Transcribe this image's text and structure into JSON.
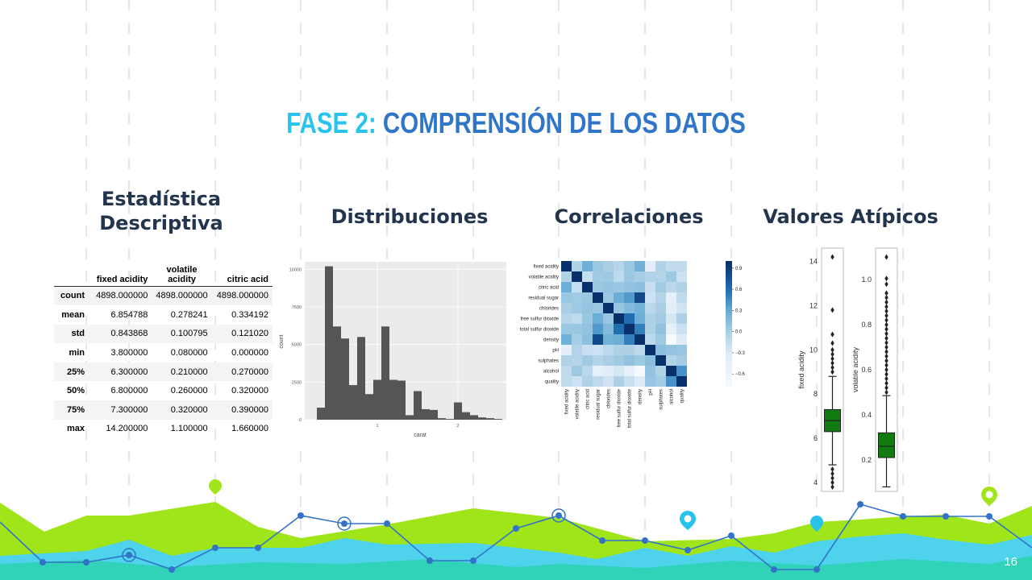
{
  "title": {
    "part1": "FASE 2:",
    "part2": "COMPRENSIÓN DE LOS DATOS"
  },
  "sections": {
    "stats": "Estadística Descriptiva",
    "dist": "Distribuciones",
    "corr": "Correlaciones",
    "outliers": "Valores Atípicos"
  },
  "stats_table": {
    "columns": [
      "fixed acidity",
      "volatile acidity",
      "citric acid"
    ],
    "rows": [
      {
        "label": "count",
        "values": [
          "4898.000000",
          "4898.000000",
          "4898.000000"
        ]
      },
      {
        "label": "mean",
        "values": [
          "6.854788",
          "0.278241",
          "0.334192"
        ]
      },
      {
        "label": "std",
        "values": [
          "0.843868",
          "0.100795",
          "0.121020"
        ]
      },
      {
        "label": "min",
        "values": [
          "3.800000",
          "0.080000",
          "0.000000"
        ]
      },
      {
        "label": "25%",
        "values": [
          "6.300000",
          "0.210000",
          "0.270000"
        ]
      },
      {
        "label": "50%",
        "values": [
          "6.800000",
          "0.260000",
          "0.320000"
        ]
      },
      {
        "label": "75%",
        "values": [
          "7.300000",
          "0.320000",
          "0.390000"
        ]
      },
      {
        "label": "max",
        "values": [
          "14.200000",
          "1.100000",
          "1.660000"
        ]
      }
    ]
  },
  "page_number": "16",
  "chart_data": [
    {
      "type": "bar",
      "title": "",
      "xlabel": "carat",
      "ylabel": "count",
      "x_ticks": [
        "1",
        "2"
      ],
      "y_ticks": [
        "0",
        "2500",
        "5000",
        "7500",
        "10000"
      ],
      "ylim": [
        0,
        10500
      ],
      "xlim": [
        0.1,
        2.6
      ],
      "bin_width": 0.1,
      "bins_start": 0.25,
      "values": [
        800,
        10200,
        6200,
        5400,
        2300,
        5500,
        1700,
        2650,
        6200,
        2650,
        2600,
        300,
        1900,
        700,
        650,
        100,
        50,
        1150,
        500,
        300,
        150,
        100,
        50
      ],
      "colors": {
        "bar": "#555555",
        "panel": "#ebebeb"
      }
    },
    {
      "type": "heatmap",
      "labels": [
        "fixed acidity",
        "volatile acidity",
        "citric acid",
        "residual sugar",
        "chlorides",
        "free sulfur dioxide",
        "total sulfur dioxide",
        "density",
        "pH",
        "sulphates",
        "alcohol",
        "quality"
      ],
      "colorbar_ticks": [
        "0.9",
        "0.6",
        "0.3",
        "0.0",
        "−0.3",
        "−0.6"
      ],
      "range": [
        -0.78,
        1.0
      ],
      "matrix": [
        [
          1.0,
          -0.02,
          0.29,
          0.09,
          0.02,
          -0.05,
          0.09,
          0.27,
          -0.43,
          -0.02,
          -0.12,
          -0.11
        ],
        [
          -0.02,
          1.0,
          -0.15,
          0.06,
          0.07,
          -0.1,
          0.09,
          0.03,
          -0.03,
          -0.04,
          0.07,
          -0.19
        ],
        [
          0.29,
          -0.15,
          1.0,
          0.09,
          0.11,
          0.09,
          0.12,
          0.15,
          -0.16,
          0.06,
          -0.08,
          -0.01
        ],
        [
          0.09,
          0.06,
          0.09,
          1.0,
          0.09,
          0.3,
          0.4,
          0.84,
          -0.19,
          -0.03,
          -0.45,
          -0.1
        ],
        [
          0.02,
          0.07,
          0.11,
          0.09,
          1.0,
          0.1,
          0.2,
          0.26,
          -0.09,
          0.02,
          -0.36,
          -0.21
        ],
        [
          -0.05,
          -0.1,
          0.09,
          0.3,
          0.1,
          1.0,
          0.62,
          0.29,
          0.0,
          0.06,
          -0.25,
          0.01
        ],
        [
          0.09,
          0.09,
          0.12,
          0.4,
          0.2,
          0.62,
          1.0,
          0.53,
          0.0,
          0.13,
          -0.45,
          -0.17
        ],
        [
          0.27,
          0.03,
          0.15,
          0.84,
          0.26,
          0.29,
          0.53,
          1.0,
          -0.09,
          0.07,
          -0.78,
          -0.31
        ],
        [
          -0.43,
          -0.03,
          -0.16,
          -0.19,
          -0.09,
          0.0,
          0.0,
          -0.09,
          1.0,
          0.16,
          0.12,
          0.1
        ],
        [
          -0.02,
          -0.04,
          0.06,
          -0.03,
          0.02,
          0.06,
          0.13,
          0.07,
          0.16,
          1.0,
          -0.02,
          0.05
        ],
        [
          -0.12,
          0.07,
          -0.08,
          -0.45,
          -0.36,
          -0.25,
          -0.45,
          -0.78,
          0.12,
          -0.02,
          1.0,
          0.44
        ],
        [
          -0.11,
          -0.19,
          -0.01,
          -0.1,
          -0.21,
          0.01,
          -0.17,
          -0.31,
          0.1,
          0.05,
          0.44,
          1.0
        ]
      ]
    },
    {
      "type": "box",
      "ylabel": "fixed acidity",
      "y_ticks": [
        "4",
        "6",
        "8",
        "10",
        "12",
        "14"
      ],
      "ylim": [
        3.6,
        14.6
      ],
      "q1": 6.3,
      "median": 6.8,
      "q3": 7.3,
      "whisker_low": 4.8,
      "whisker_high": 8.8,
      "outliers": [
        14.2,
        11.8,
        10.7,
        10.3,
        10.0,
        9.8,
        9.6,
        9.4,
        9.2,
        9.0,
        4.6,
        4.4,
        4.2,
        4.0,
        3.8
      ],
      "colors": {
        "box": "#117a11"
      }
    },
    {
      "type": "box",
      "ylabel": "volatile acidity",
      "y_ticks": [
        "0.2",
        "0.4",
        "0.6",
        "0.8",
        "1.0"
      ],
      "ylim": [
        0.06,
        1.14
      ],
      "q1": 0.21,
      "median": 0.26,
      "q3": 0.32,
      "whisker_low": 0.08,
      "whisker_high": 0.485,
      "outliers": [
        1.1,
        1.005,
        0.98,
        0.94,
        0.92,
        0.9,
        0.88,
        0.86,
        0.84,
        0.82,
        0.8,
        0.78,
        0.76,
        0.74,
        0.72,
        0.7,
        0.68,
        0.66,
        0.64,
        0.62,
        0.6,
        0.58,
        0.56,
        0.54,
        0.52,
        0.5
      ],
      "colors": {
        "box": "#117a11"
      }
    }
  ]
}
